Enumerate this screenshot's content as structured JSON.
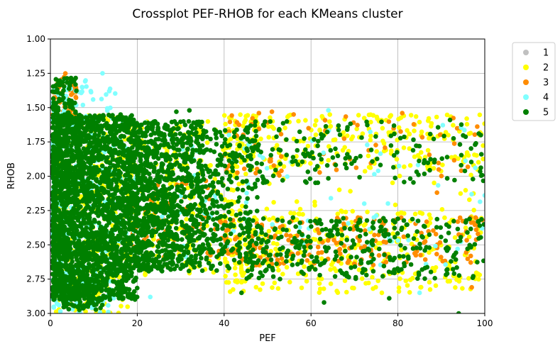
{
  "chart_data": {
    "type": "scatter",
    "title": "Crossplot PEF-RHOB for each KMeans cluster",
    "xlabel": "PEF",
    "ylabel": "RHOB",
    "xlim": [
      0,
      100
    ],
    "ylim": [
      3.0,
      1.0
    ],
    "y_inverted": true,
    "xticks": [
      "0",
      "20",
      "40",
      "60",
      "80",
      "100"
    ],
    "yticks": [
      "1.00",
      "1.25",
      "1.50",
      "1.75",
      "2.00",
      "2.25",
      "2.50",
      "2.75",
      "3.00"
    ],
    "grid": true,
    "legend_position": "outside-top-right",
    "series": [
      {
        "name": "1",
        "color": "#c0c0c0",
        "cloud": [],
        "points": []
      },
      {
        "name": "2",
        "color": "#ffff00",
        "cloud": [
          {
            "x": [
              1,
              18
            ],
            "y": [
              1.55,
              3.0
            ],
            "n": 350
          },
          {
            "x": [
              18,
              45
            ],
            "y": [
              1.6,
              2.75
            ],
            "n": 220
          },
          {
            "x": [
              40,
              100
            ],
            "y": [
              1.55,
              1.95
            ],
            "n": 260
          },
          {
            "x": [
              40,
              100
            ],
            "y": [
              2.25,
              2.85
            ],
            "n": 320
          },
          {
            "x": [
              40,
              100
            ],
            "y": [
              1.95,
              2.25
            ],
            "n": 30
          }
        ],
        "points": []
      },
      {
        "name": "3",
        "color": "#ff8c00",
        "cloud": [
          {
            "x": [
              0.5,
              6
            ],
            "y": [
              1.25,
              1.6
            ],
            "n": 60
          },
          {
            "x": [
              18,
              40
            ],
            "y": [
              2.0,
              2.6
            ],
            "n": 70
          },
          {
            "x": [
              40,
              100
            ],
            "y": [
              2.3,
              2.65
            ],
            "n": 190
          },
          {
            "x": [
              40,
              100
            ],
            "y": [
              1.55,
              2.0
            ],
            "n": 70
          }
        ],
        "points": [
          {
            "x": 48,
            "y": 1.54
          },
          {
            "x": 51,
            "y": 1.53
          },
          {
            "x": 56,
            "y": 1.55
          },
          {
            "x": 81,
            "y": 1.54
          },
          {
            "x": 89,
            "y": 2.12
          },
          {
            "x": 97,
            "y": 2.81
          }
        ]
      },
      {
        "name": "4",
        "color": "#80ffff",
        "cloud": [
          {
            "x": [
              0,
              15
            ],
            "y": [
              1.3,
              3.0
            ],
            "n": 320
          },
          {
            "x": [
              15,
              45
            ],
            "y": [
              1.6,
              2.6
            ],
            "n": 60
          },
          {
            "x": [
              45,
              100
            ],
            "y": [
              1.6,
              2.7
            ],
            "n": 60
          }
        ],
        "points": [
          {
            "x": 12,
            "y": 1.25
          },
          {
            "x": 23,
            "y": 2.88
          },
          {
            "x": 64,
            "y": 1.52
          },
          {
            "x": 85,
            "y": 2.85
          },
          {
            "x": 100,
            "y": 2.14
          }
        ]
      },
      {
        "name": "5",
        "color": "#008000",
        "cloud": [
          {
            "x": [
              0.5,
              20
            ],
            "y": [
              1.55,
              2.9
            ],
            "n": 2400
          },
          {
            "x": [
              0.5,
              6
            ],
            "y": [
              1.28,
              1.6
            ],
            "n": 80
          },
          {
            "x": [
              3,
              12
            ],
            "y": [
              2.75,
              2.98
            ],
            "n": 90
          },
          {
            "x": [
              20,
              35
            ],
            "y": [
              1.6,
              2.7
            ],
            "n": 900
          },
          {
            "x": [
              35,
              48
            ],
            "y": [
              1.65,
              2.7
            ],
            "n": 260
          },
          {
            "x": [
              45,
              100
            ],
            "y": [
              2.3,
              2.75
            ],
            "n": 330
          },
          {
            "x": [
              45,
              100
            ],
            "y": [
              1.6,
              2.05
            ],
            "n": 170
          }
        ],
        "points": [
          {
            "x": 29,
            "y": 1.53
          },
          {
            "x": 32,
            "y": 1.52
          },
          {
            "x": 92,
            "y": 1.59
          },
          {
            "x": 94,
            "y": 3.0
          },
          {
            "x": 63,
            "y": 2.92
          },
          {
            "x": 78,
            "y": 2.89
          },
          {
            "x": 44,
            "y": 2.85
          },
          {
            "x": 96,
            "y": 2.41
          }
        ]
      }
    ]
  }
}
